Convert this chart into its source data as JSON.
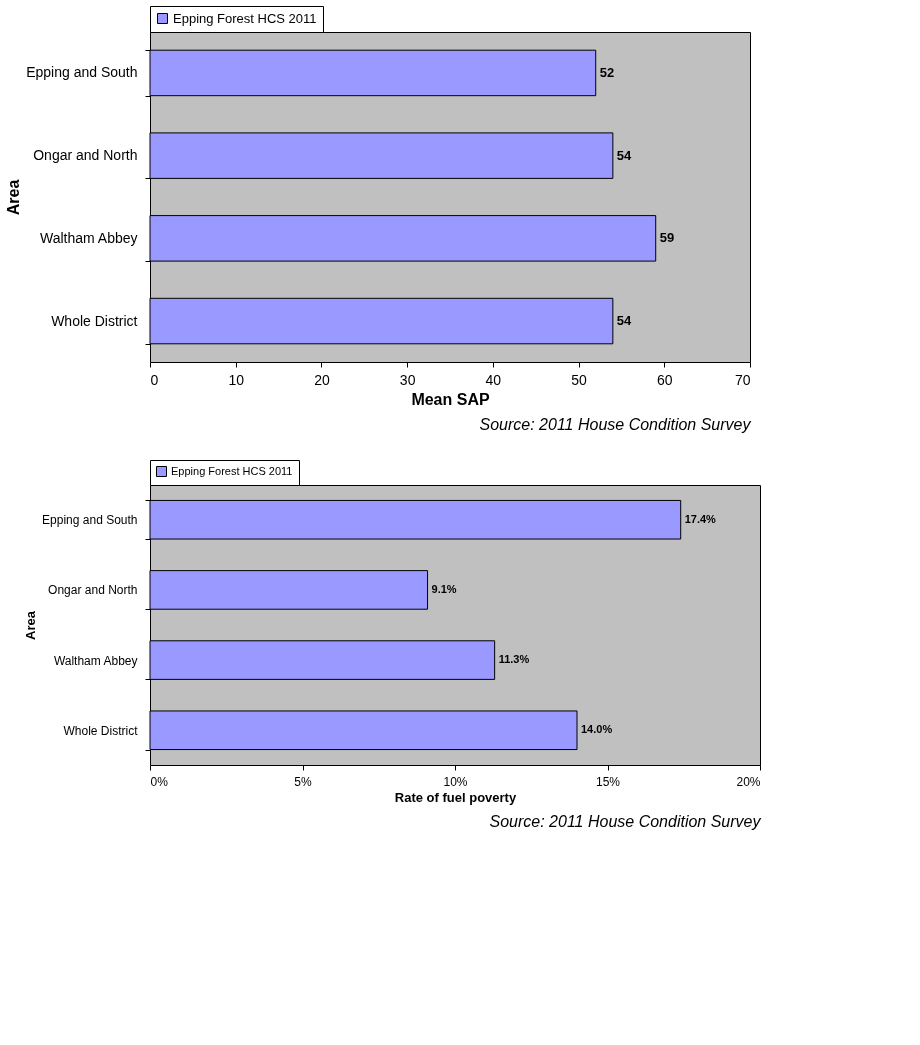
{
  "chart_data": [
    {
      "type": "bar",
      "orientation": "horizontal",
      "ylabel": "Area",
      "xlabel": "Mean SAP",
      "categories": [
        "Epping and South",
        "Ongar and North",
        "Waltham Abbey",
        "Whole District"
      ],
      "series": [
        {
          "name": "Epping Forest HCS 2011",
          "color": "#9999ff",
          "values": [
            52,
            54,
            59,
            54
          ]
        }
      ],
      "xlim": [
        0,
        70
      ],
      "xticks": [
        0,
        10,
        20,
        30,
        40,
        50,
        60,
        70
      ],
      "data_labels": true,
      "grid": false,
      "legend": "top",
      "annotations": [
        "Source: 2011 House Condition Survey"
      ]
    },
    {
      "type": "bar",
      "orientation": "horizontal",
      "ylabel": "Area",
      "xlabel": "Rate of fuel poverty",
      "categories": [
        "Epping and South",
        "Ongar and North",
        "Waltham Abbey",
        "Whole District"
      ],
      "series": [
        {
          "name": "Epping Forest HCS 2011",
          "color": "#9999ff",
          "values": [
            17.4,
            9.1,
            11.3,
            14.0
          ],
          "value_labels": [
            "17.4%",
            "9.1%",
            "11.3%",
            "14.0%"
          ]
        }
      ],
      "xlim": [
        0,
        20
      ],
      "xticks": [
        {
          "value": 0,
          "label": "0%"
        },
        {
          "value": 5,
          "label": "5%"
        },
        {
          "value": 10,
          "label": "10%"
        },
        {
          "value": 15,
          "label": "15%"
        },
        {
          "value": 20,
          "label": "20%"
        }
      ],
      "grid": false,
      "legend": "top",
      "annotations": [
        "Source: 2011 House Condition Survey"
      ]
    }
  ]
}
